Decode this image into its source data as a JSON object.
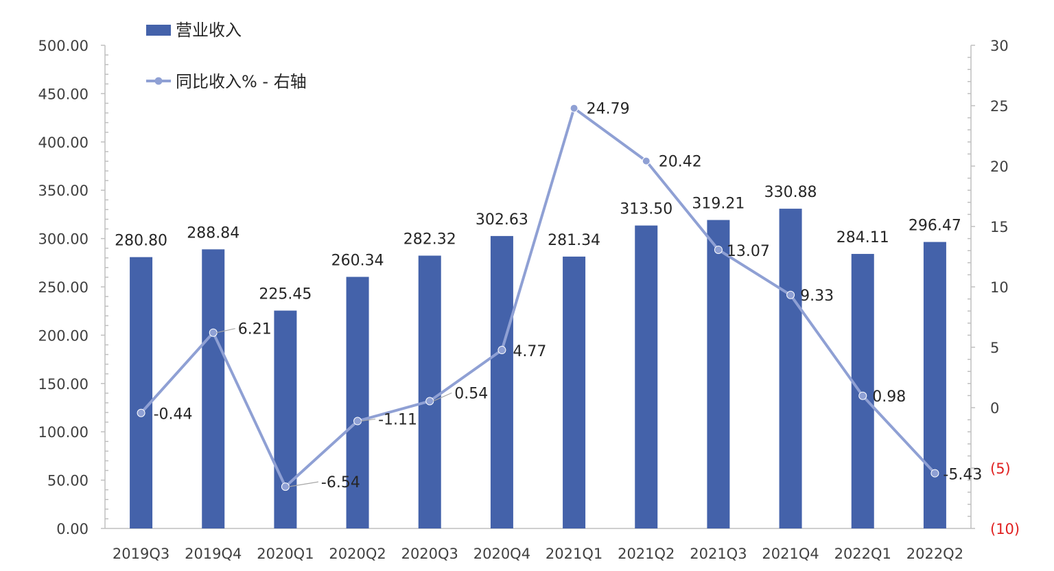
{
  "chart_data": {
    "type": "bar",
    "categories": [
      "2019Q3",
      "2019Q4",
      "2020Q1",
      "2020Q2",
      "2020Q3",
      "2020Q4",
      "2021Q1",
      "2021Q2",
      "2021Q3",
      "2021Q4",
      "2022Q1",
      "2022Q2"
    ],
    "series": [
      {
        "name": "营业收入",
        "type": "bar",
        "axis": "left",
        "values": [
          280.8,
          288.84,
          225.45,
          260.34,
          282.32,
          302.63,
          281.34,
          313.5,
          319.21,
          330.88,
          284.11,
          296.47
        ],
        "labels": [
          "280.80",
          "288.84",
          "225.45",
          "260.34",
          "282.32",
          "302.63",
          "281.34",
          "313.50",
          "319.21",
          "330.88",
          "284.11",
          "296.47"
        ],
        "color": "#4462aa"
      },
      {
        "name": "同比收入% - 右轴",
        "type": "line",
        "axis": "right",
        "values": [
          -0.44,
          6.21,
          -6.54,
          -1.11,
          0.54,
          4.77,
          24.79,
          20.42,
          13.07,
          9.33,
          0.98,
          -5.43
        ],
        "labels": [
          "-0.44",
          "6.21",
          "-6.54",
          "-1.11",
          "0.54",
          "4.77",
          "24.79",
          "20.42",
          "13.07",
          "9.33",
          "0.98",
          "-5.43"
        ],
        "color": "#8fa0d4"
      }
    ],
    "y_left": {
      "min": 0,
      "max": 500,
      "step": 50,
      "ticks": [
        "0.00",
        "50.00",
        "100.00",
        "150.00",
        "200.00",
        "250.00",
        "300.00",
        "350.00",
        "400.00",
        "450.00",
        "500.00"
      ]
    },
    "y_right": {
      "min": -10,
      "max": 30,
      "step": 5,
      "ticks": [
        "(10)",
        "(5)",
        "0",
        "5",
        "10",
        "15",
        "20",
        "25",
        "30"
      ],
      "negative_color": "#e02020",
      "positive_color": "#404040"
    },
    "legend": {
      "placement": "top-left",
      "items": [
        "营业收入",
        "同比收入% - 右轴"
      ]
    },
    "grid": false
  }
}
